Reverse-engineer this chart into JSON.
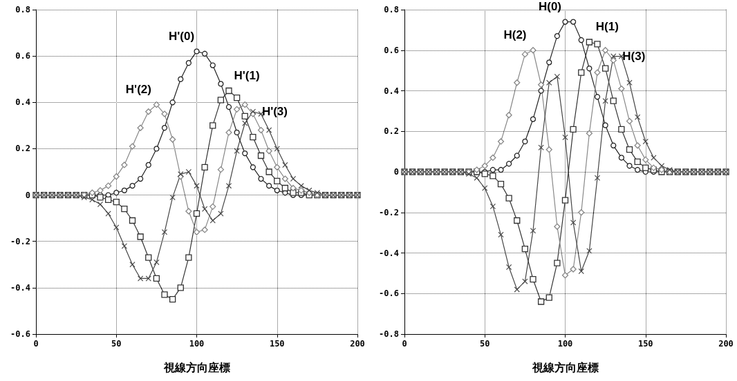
{
  "chart_data": [
    {
      "type": "line",
      "xlabel": "視線方向座標",
      "x": [
        0,
        5,
        10,
        15,
        20,
        25,
        30,
        35,
        40,
        45,
        50,
        55,
        60,
        65,
        70,
        75,
        80,
        85,
        90,
        95,
        100,
        105,
        110,
        115,
        120,
        125,
        130,
        135,
        140,
        145,
        150,
        155,
        160,
        165,
        170,
        175,
        180,
        185,
        190,
        195,
        200
      ],
      "xlim": [
        0,
        200
      ],
      "xticks": [
        0,
        50,
        100,
        150,
        200
      ],
      "ylim": [
        -0.6,
        0.8
      ],
      "yticks": [
        -0.6,
        -0.4,
        -0.2,
        0,
        0.2,
        0.4,
        0.6,
        0.8
      ],
      "grid": true,
      "legend": false,
      "series": [
        {
          "name": "H'(0)",
          "color": "#222222",
          "marker": "circle",
          "values": [
            0,
            0,
            0,
            0,
            0,
            0,
            0,
            0,
            0,
            0,
            0.01,
            0.02,
            0.04,
            0.07,
            0.13,
            0.2,
            0.29,
            0.4,
            0.5,
            0.57,
            0.62,
            0.61,
            0.56,
            0.48,
            0.38,
            0.27,
            0.18,
            0.12,
            0.07,
            0.04,
            0.02,
            0.01,
            0,
            0,
            0,
            0,
            0,
            0,
            0,
            0,
            0
          ]
        },
        {
          "name": "H'(1)",
          "color": "#333333",
          "marker": "square",
          "values": [
            0,
            0,
            0,
            0,
            0,
            0,
            0,
            0,
            -0.01,
            -0.02,
            -0.03,
            -0.06,
            -0.11,
            -0.18,
            -0.27,
            -0.36,
            -0.43,
            -0.45,
            -0.4,
            -0.27,
            -0.08,
            0.12,
            0.3,
            0.41,
            0.45,
            0.42,
            0.34,
            0.25,
            0.17,
            0.1,
            0.06,
            0.03,
            0.01,
            0.01,
            0,
            0,
            0,
            0,
            0,
            0,
            0
          ]
        },
        {
          "name": "H'(2)",
          "color": "#888888",
          "marker": "diamond",
          "values": [
            0,
            0,
            0,
            0,
            0,
            0,
            0,
            0.01,
            0.02,
            0.04,
            0.08,
            0.13,
            0.21,
            0.29,
            0.36,
            0.39,
            0.35,
            0.24,
            0.08,
            -0.07,
            -0.16,
            -0.15,
            -0.05,
            0.11,
            0.27,
            0.37,
            0.39,
            0.35,
            0.28,
            0.19,
            0.12,
            0.07,
            0.03,
            0.02,
            0.01,
            0,
            0,
            0,
            0,
            0,
            0
          ]
        },
        {
          "name": "H'(3)",
          "color": "#444444",
          "marker": "cross",
          "values": [
            0,
            0,
            0,
            0,
            0,
            0,
            -0.01,
            -0.02,
            -0.04,
            -0.08,
            -0.14,
            -0.22,
            -0.3,
            -0.36,
            -0.36,
            -0.29,
            -0.16,
            -0.01,
            0.09,
            0.1,
            0.04,
            -0.06,
            -0.11,
            -0.08,
            0.04,
            0.19,
            0.31,
            0.36,
            0.35,
            0.28,
            0.2,
            0.13,
            0.07,
            0.04,
            0.02,
            0.01,
            0,
            0,
            0,
            0,
            0
          ]
        }
      ]
    },
    {
      "type": "line",
      "xlabel": "視線方向座標",
      "x": [
        0,
        5,
        10,
        15,
        20,
        25,
        30,
        35,
        40,
        45,
        50,
        55,
        60,
        65,
        70,
        75,
        80,
        85,
        90,
        95,
        100,
        105,
        110,
        115,
        120,
        125,
        130,
        135,
        140,
        145,
        150,
        155,
        160,
        165,
        170,
        175,
        180,
        185,
        190,
        195,
        200
      ],
      "xlim": [
        0,
        200
      ],
      "xticks": [
        0,
        50,
        100,
        150,
        200
      ],
      "ylim": [
        -0.8,
        0.8
      ],
      "yticks": [
        -0.8,
        -0.6,
        -0.4,
        -0.2,
        0,
        0.2,
        0.4,
        0.6,
        0.8
      ],
      "grid": true,
      "legend": false,
      "series": [
        {
          "name": "H(0)",
          "color": "#222222",
          "marker": "circle",
          "values": [
            0,
            0,
            0,
            0,
            0,
            0,
            0,
            0,
            0,
            0,
            0,
            0.01,
            0.01,
            0.04,
            0.08,
            0.15,
            0.26,
            0.4,
            0.54,
            0.67,
            0.74,
            0.74,
            0.65,
            0.51,
            0.37,
            0.23,
            0.13,
            0.07,
            0.03,
            0.01,
            0,
            0,
            0,
            0,
            0,
            0,
            0,
            0,
            0,
            0,
            0
          ]
        },
        {
          "name": "H(1)",
          "color": "#333333",
          "marker": "square",
          "values": [
            0,
            0,
            0,
            0,
            0,
            0,
            0,
            0,
            0,
            0,
            -0.01,
            -0.02,
            -0.06,
            -0.13,
            -0.24,
            -0.38,
            -0.53,
            -0.64,
            -0.62,
            -0.45,
            -0.14,
            0.21,
            0.49,
            0.64,
            0.63,
            0.51,
            0.35,
            0.21,
            0.11,
            0.05,
            0.02,
            0.01,
            0,
            0,
            0,
            0,
            0,
            0,
            0,
            0,
            0
          ]
        },
        {
          "name": "H(2)",
          "color": "#888888",
          "marker": "diamond",
          "values": [
            0,
            0,
            0,
            0,
            0,
            0,
            0,
            0,
            0,
            0.01,
            0.03,
            0.07,
            0.15,
            0.28,
            0.44,
            0.58,
            0.6,
            0.43,
            0.11,
            -0.27,
            -0.51,
            -0.48,
            -0.2,
            0.19,
            0.49,
            0.6,
            0.55,
            0.41,
            0.25,
            0.13,
            0.06,
            0.02,
            0.01,
            0,
            0,
            0,
            0,
            0,
            0,
            0,
            0
          ]
        },
        {
          "name": "H(3)",
          "color": "#444444",
          "marker": "cross",
          "values": [
            0,
            0,
            0,
            0,
            0,
            0,
            0,
            0,
            -0.01,
            -0.03,
            -0.08,
            -0.17,
            -0.31,
            -0.47,
            -0.58,
            -0.54,
            -0.29,
            0.12,
            0.44,
            0.47,
            0.17,
            -0.25,
            -0.49,
            -0.39,
            -0.03,
            0.35,
            0.57,
            0.57,
            0.44,
            0.27,
            0.15,
            0.07,
            0.03,
            0.01,
            0,
            0,
            0,
            0,
            0,
            0,
            0
          ]
        }
      ]
    }
  ]
}
